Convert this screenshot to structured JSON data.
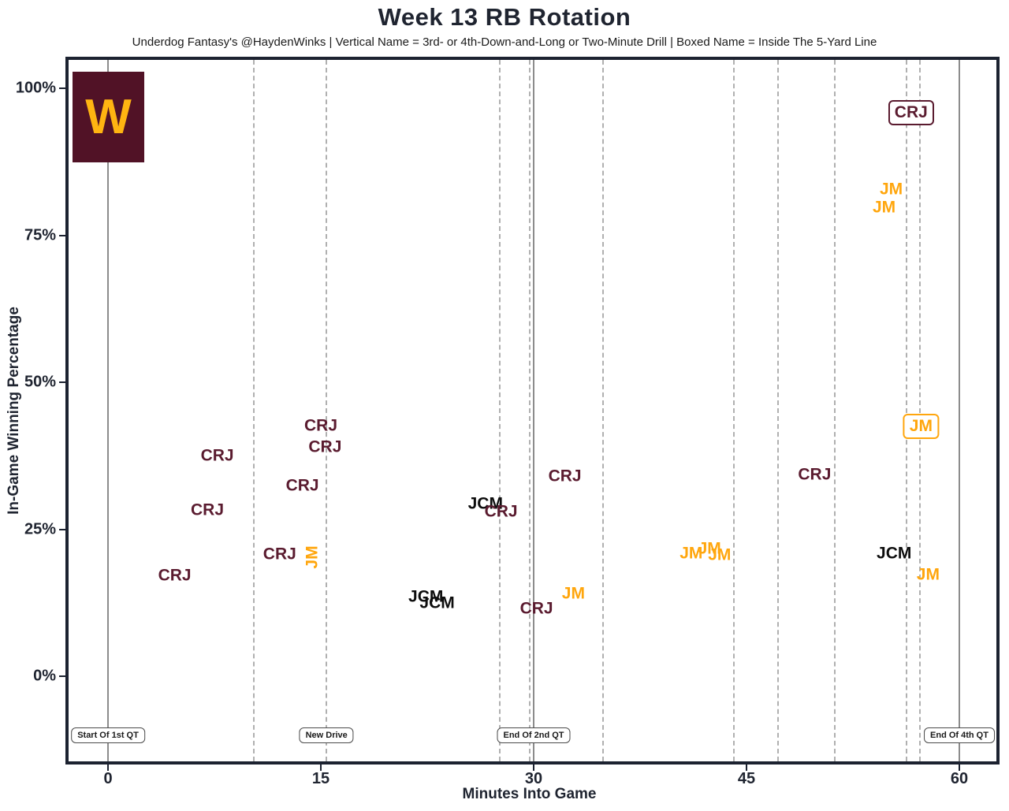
{
  "title": "Week 13 RB Rotation",
  "subtitle": "Underdog Fantasy's @HaydenWinks | Vertical Name = 3rd- or 4th-Down-and-Long or Two-Minute Drill | Boxed Name = Inside The 5-Yard Line",
  "x_axis": {
    "label": "Minutes Into Game",
    "ticks": [
      0,
      15,
      30,
      45,
      60
    ]
  },
  "y_axis": {
    "label": "In-Game Winning Percentage",
    "ticks": [
      {
        "value": 100,
        "label": "100%"
      },
      {
        "value": 75,
        "label": "75%"
      },
      {
        "value": 50,
        "label": "50%"
      },
      {
        "value": 25,
        "label": "25%"
      },
      {
        "value": 0,
        "label": "0%"
      }
    ]
  },
  "logo": {
    "team": "washington",
    "letter": "W",
    "bg_color": "#511226",
    "letter_color": "#FFB411"
  },
  "colors": {
    "CRJ": "#5a1b2f",
    "JM": "#FFA60D",
    "JCM": "#0d0d0d",
    "axis_text": "#1f2430",
    "solid_line": "#8c8c8c",
    "dashed_line": "#b0b0b0"
  },
  "event_markers": [
    {
      "label": "Start Of 1st QT",
      "x": 0
    },
    {
      "label": "New Drive",
      "x": 15.4
    },
    {
      "label": "End Of 2nd QT",
      "x": 30
    },
    {
      "label": "End Of 4th QT",
      "x": 60
    }
  ],
  "chart_data": {
    "type": "scatter",
    "title": "Week 13 RB Rotation",
    "xlabel": "Minutes Into Game",
    "ylabel": "In-Game Winning Percentage",
    "xlim": [
      -2.8,
      62.6
    ],
    "ylim": [
      -15,
      105
    ],
    "grid": "vertical-drive-lines",
    "solid_vlines_minutes": [
      0,
      30,
      60
    ],
    "dashed_vlines_minutes": [
      10.3,
      15.4,
      27.6,
      29.7,
      34.9,
      44.1,
      47.2,
      51.2,
      56.3,
      57.2
    ],
    "point_meaning": {
      "vertical": "3rd- or 4th-Down-and-Long or Two-Minute Drill",
      "boxed": "Inside The 5-Yard Line"
    },
    "points": [
      {
        "player": "CRJ",
        "x": 4.7,
        "y": 17.2
      },
      {
        "player": "CRJ",
        "x": 7.0,
        "y": 28.3
      },
      {
        "player": "CRJ",
        "x": 7.7,
        "y": 37.5
      },
      {
        "player": "CRJ",
        "x": 12.1,
        "y": 20.8
      },
      {
        "player": "JM",
        "x": 14.4,
        "y": 20.2,
        "style": "vertical"
      },
      {
        "player": "CRJ",
        "x": 13.7,
        "y": 32.4
      },
      {
        "player": "CRJ",
        "x": 15.0,
        "y": 42.6
      },
      {
        "player": "CRJ",
        "x": 15.3,
        "y": 39.0
      },
      {
        "player": "JCM",
        "x": 22.4,
        "y": 13.5
      },
      {
        "player": "JCM",
        "x": 23.2,
        "y": 12.5
      },
      {
        "player": "JCM",
        "x": 26.6,
        "y": 29.4
      },
      {
        "player": "CRJ",
        "x": 27.7,
        "y": 28.0
      },
      {
        "player": "CRJ",
        "x": 30.2,
        "y": 11.5
      },
      {
        "player": "JM",
        "x": 32.8,
        "y": 14.1
      },
      {
        "player": "CRJ",
        "x": 32.2,
        "y": 34.0
      },
      {
        "player": "JM",
        "x": 41.1,
        "y": 20.9
      },
      {
        "player": "JM",
        "x": 42.4,
        "y": 21.7
      },
      {
        "player": "JM",
        "x": 43.1,
        "y": 20.6
      },
      {
        "player": "CRJ",
        "x": 49.8,
        "y": 34.3
      },
      {
        "player": "JCM",
        "x": 55.4,
        "y": 20.9
      },
      {
        "player": "JM",
        "x": 57.8,
        "y": 17.3
      },
      {
        "player": "JM",
        "x": 57.3,
        "y": 42.5,
        "style": "boxed"
      },
      {
        "player": "CRJ",
        "x": 56.6,
        "y": 95.8,
        "style": "boxed"
      },
      {
        "player": "JM",
        "x": 55.2,
        "y": 82.8
      },
      {
        "player": "JM",
        "x": 54.7,
        "y": 79.8
      }
    ]
  }
}
